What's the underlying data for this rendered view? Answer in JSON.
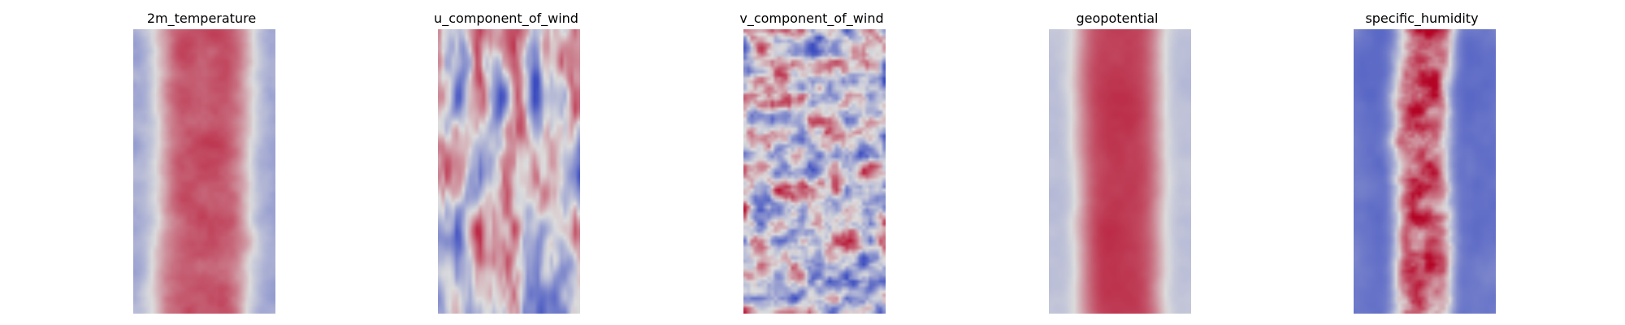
{
  "figure": {
    "panels": [
      {
        "title": "2m_temperature",
        "colormap": "coolwarm",
        "pattern": "warm-band-wide"
      },
      {
        "title": "u_component_of_wind",
        "colormap": "coolwarm",
        "pattern": "streaks"
      },
      {
        "title": "v_component_of_wind",
        "colormap": "coolwarm",
        "pattern": "eddies"
      },
      {
        "title": "geopotential",
        "colormap": "coolwarm",
        "pattern": "warm-band-smooth"
      },
      {
        "title": "specific_humidity",
        "colormap": "coolwarm",
        "pattern": "moist-core"
      }
    ],
    "colors": {
      "cold": "#3b4cc0",
      "neutral": "#dddddd",
      "warm": "#b40426"
    }
  }
}
